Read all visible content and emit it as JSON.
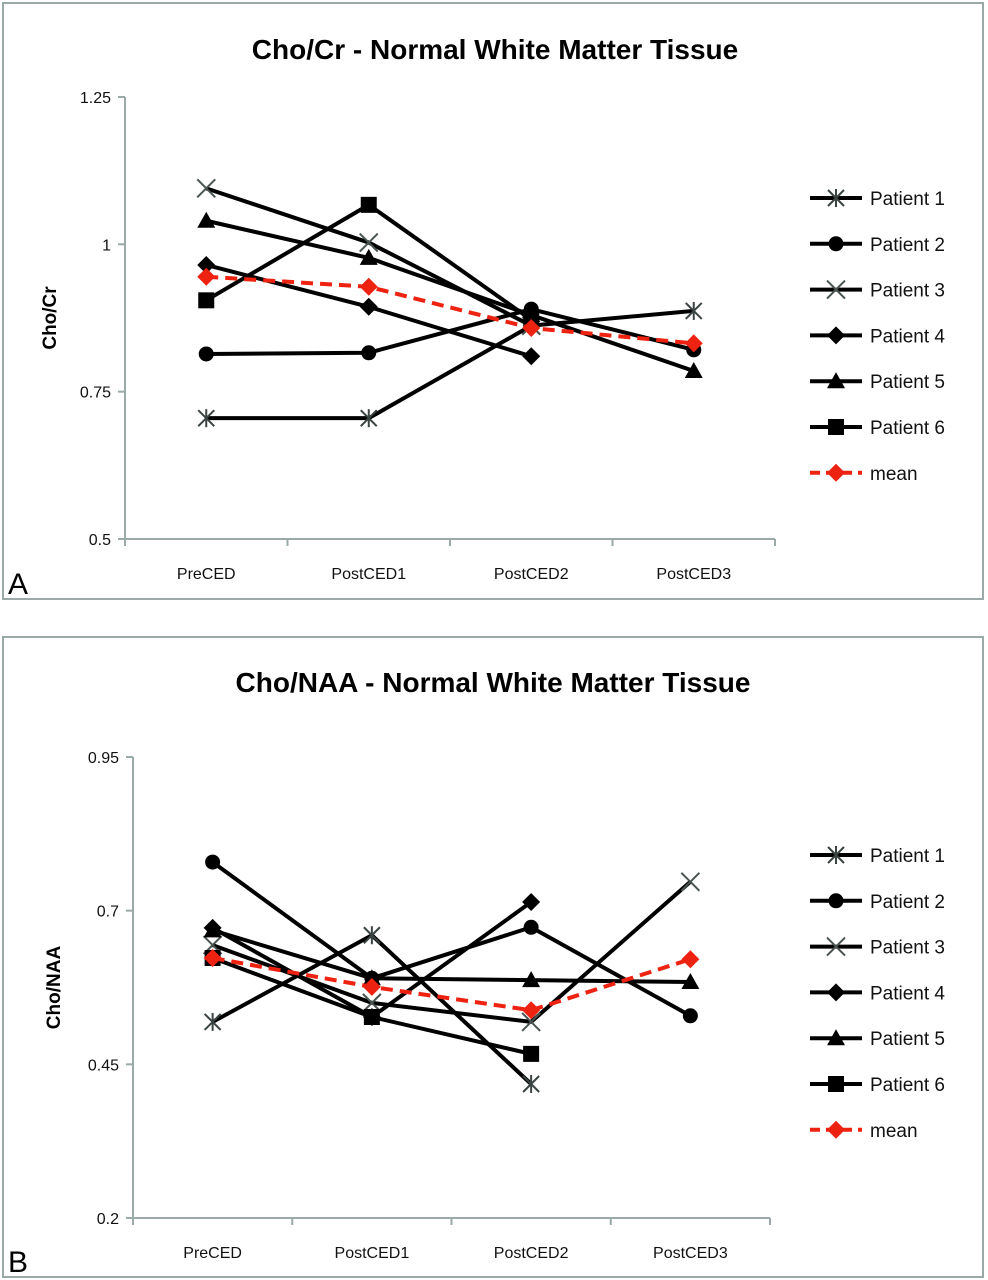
{
  "chart_data": [
    {
      "id": "A",
      "type": "line",
      "panel_label": "A",
      "title": "Cho/Cr - Normal White Matter Tissue",
      "xlabel": "",
      "ylabel": "Cho/Cr",
      "ylim": [
        0.5,
        1.25
      ],
      "yticks": [
        0.5,
        0.75,
        1,
        1.25
      ],
      "ytick_labels": [
        "0.5",
        "0.75",
        "1",
        "1.25"
      ],
      "categories": [
        "PreCED",
        "PostCED1",
        "PostCED2",
        "PostCED3"
      ],
      "grid": false,
      "legend_position": "right",
      "series": [
        {
          "name": "Patient 1",
          "marker": "asterisk",
          "color": "#000000",
          "dashed": false,
          "values": [
            0.705,
            0.705,
            0.862,
            0.887
          ]
        },
        {
          "name": "Patient 2",
          "marker": "circle",
          "color": "#000000",
          "dashed": false,
          "values": [
            0.814,
            0.816,
            0.89,
            0.821
          ]
        },
        {
          "name": "Patient 3",
          "marker": "x",
          "color": "#000000",
          "dashed": false,
          "values": [
            1.095,
            1.003,
            0.862,
            null
          ]
        },
        {
          "name": "Patient 4",
          "marker": "diamond",
          "color": "#000000",
          "dashed": false,
          "values": [
            0.965,
            0.894,
            0.81,
            null
          ]
        },
        {
          "name": "Patient 5",
          "marker": "triangle",
          "color": "#000000",
          "dashed": false,
          "values": [
            1.04,
            0.977,
            0.88,
            0.785
          ]
        },
        {
          "name": "Patient 6",
          "marker": "square",
          "color": "#000000",
          "dashed": false,
          "values": [
            0.905,
            1.067,
            0.872,
            null
          ]
        },
        {
          "name": "mean",
          "marker": "diamond",
          "color": "#ee2211",
          "dashed": true,
          "values": [
            0.945,
            0.928,
            0.858,
            0.832
          ]
        }
      ]
    },
    {
      "id": "B",
      "type": "line",
      "panel_label": "B",
      "title": "Cho/NAA - Normal White Matter Tissue",
      "xlabel": "",
      "ylabel": "Cho/NAA",
      "ylim": [
        0.2,
        0.95
      ],
      "yticks": [
        0.2,
        0.45,
        0.7,
        0.95
      ],
      "ytick_labels": [
        "0.2",
        "0.45",
        "0.7",
        "0.95"
      ],
      "categories": [
        "PreCED",
        "PostCED1",
        "PostCED2",
        "PostCED3"
      ],
      "grid": false,
      "legend_position": "right",
      "series": [
        {
          "name": "Patient 1",
          "marker": "asterisk",
          "color": "#000000",
          "dashed": false,
          "values": [
            0.519,
            0.66,
            0.418,
            null
          ]
        },
        {
          "name": "Patient 2",
          "marker": "circle",
          "color": "#000000",
          "dashed": false,
          "values": [
            0.779,
            0.59,
            0.673,
            0.529
          ]
        },
        {
          "name": "Patient 3",
          "marker": "x",
          "color": "#000000",
          "dashed": false,
          "values": [
            0.644,
            0.55,
            0.519,
            0.747
          ]
        },
        {
          "name": "Patient 4",
          "marker": "diamond",
          "color": "#000000",
          "dashed": false,
          "values": [
            0.672,
            0.527,
            0.714,
            null
          ]
        },
        {
          "name": "Patient 5",
          "marker": "triangle",
          "color": "#000000",
          "dashed": false,
          "values": [
            0.668,
            0.59,
            0.587,
            0.584
          ]
        },
        {
          "name": "Patient 6",
          "marker": "square",
          "color": "#000000",
          "dashed": false,
          "values": [
            0.623,
            0.527,
            0.467,
            null
          ]
        },
        {
          "name": "mean",
          "marker": "diamond",
          "color": "#ee2211",
          "dashed": true,
          "values": [
            0.623,
            0.576,
            0.538,
            0.621
          ]
        }
      ]
    }
  ]
}
